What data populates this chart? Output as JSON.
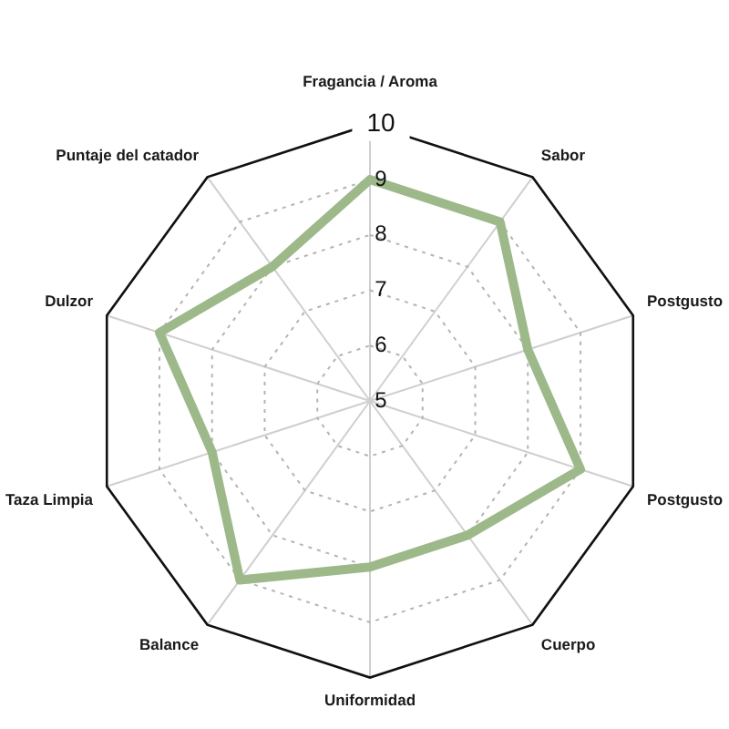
{
  "chart_data": {
    "type": "radar",
    "categories": [
      "Fragancia / Aroma",
      "Sabor",
      "Postgusto",
      "Postgusto",
      "Cuerpo",
      "Uniformidad",
      "Balance",
      "Taza Limpia",
      "Dulzor",
      "Puntaje del catador"
    ],
    "series": [
      {
        "color": "#9db98a",
        "values": [
          9,
          9,
          8,
          9,
          8,
          8,
          9,
          8,
          9,
          8
        ]
      }
    ],
    "ylim": [
      5,
      10
    ],
    "yticks": [
      5,
      6,
      7,
      8,
      9,
      10
    ],
    "grid": true,
    "marker": "none"
  }
}
